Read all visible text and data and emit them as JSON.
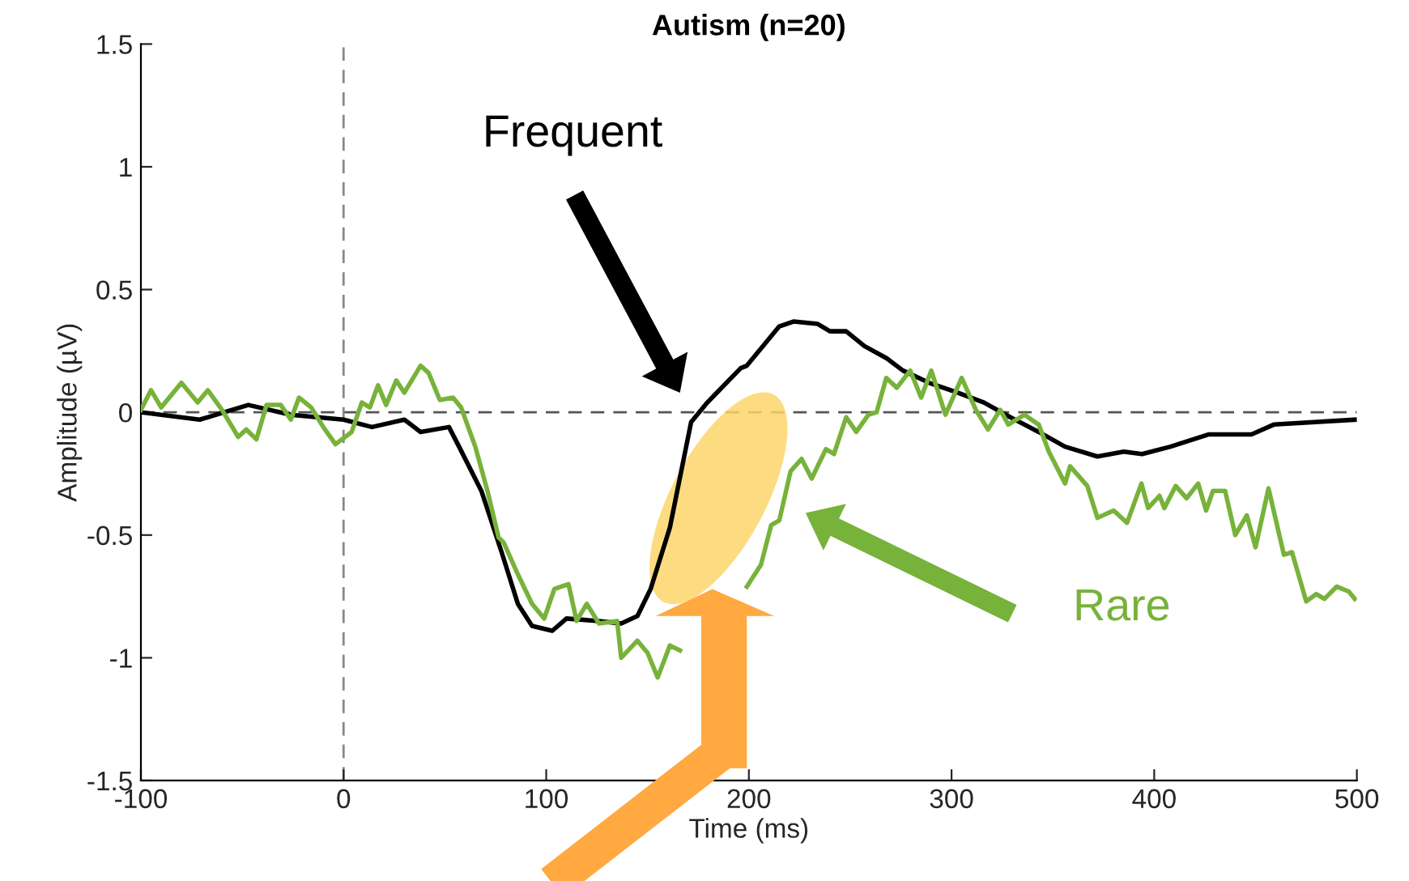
{
  "chart_data": {
    "type": "line",
    "title": "Autism (n=20)",
    "xlabel": "Time (ms)",
    "ylabel": "Amplitude (µV)",
    "xlim": [
      -100,
      500
    ],
    "xticks": [
      -100,
      0,
      100,
      200,
      300,
      400,
      500
    ],
    "ylim": [
      -1.5,
      1.5
    ],
    "yticks": [
      -1.5,
      -1,
      -0.5,
      0,
      0.5,
      1,
      1.5
    ],
    "grid": false,
    "legend": false,
    "marker": "none",
    "line_style": "solid",
    "ref_lines": [
      {
        "axis": "y",
        "value": 0,
        "color": "#555555",
        "line_style": "dashed"
      },
      {
        "axis": "x",
        "value": 0,
        "color": "#888888",
        "line_style": "dashed"
      }
    ],
    "annotations": [
      "Frequent",
      "Rare"
    ],
    "series": [
      {
        "color": "#000000",
        "x": [
          -100,
          -71,
          -47,
          -26,
          0,
          14,
          30,
          38,
          52,
          57,
          68,
          78,
          86,
          93,
          103,
          110,
          126,
          137,
          145,
          151.5,
          161,
          171.5,
          179.5,
          183,
          196,
          199,
          215,
          222,
          234,
          240,
          248,
          257,
          268,
          276,
          289,
          303,
          316,
          329,
          343,
          356,
          372,
          385,
          394,
          408,
          427,
          448,
          459,
          499
        ],
        "values": [
          0,
          -0.03,
          0.03,
          -0.01,
          -0.03,
          -0.06,
          -0.03,
          -0.08,
          -0.06,
          -0.14,
          -0.32,
          -0.57,
          -0.78,
          -0.87,
          -0.89,
          -0.84,
          -0.85,
          -0.86,
          -0.83,
          -0.72,
          -0.47,
          -0.04,
          0.04,
          0.07,
          0.18,
          0.19,
          0.35,
          0.37,
          0.36,
          0.33,
          0.33,
          0.27,
          0.22,
          0.17,
          0.12,
          0.08,
          0.04,
          -0.02,
          -0.08,
          -0.14,
          -0.18,
          -0.16,
          -0.17,
          -0.14,
          -0.09,
          -0.09,
          -0.05,
          -0.03
        ]
      },
      {
        "color": "#77b23a",
        "x": [
          -100,
          -95,
          -90,
          -80,
          -72,
          -67,
          -60,
          -52,
          -48,
          -43,
          -38,
          -31,
          -26,
          -22,
          -16,
          -10,
          -4,
          4,
          9,
          13,
          17,
          21,
          26,
          30,
          38,
          42,
          47.5,
          54,
          58,
          65,
          71,
          76.5,
          79,
          86,
          93,
          99,
          104,
          111,
          115,
          120,
          126,
          135,
          137,
          145,
          150,
          155,
          161,
          166,
          172.5,
          199,
          206,
          211,
          215,
          220.6,
          226,
          231,
          238,
          242,
          248,
          253,
          259,
          263,
          267.8,
          273,
          279.6,
          285,
          290,
          297,
          305,
          312,
          318,
          324,
          328,
          336,
          343,
          348,
          356,
          358.5,
          367,
          372,
          380,
          386.6,
          393.7,
          397,
          402.6,
          405,
          410.6,
          416,
          421.7,
          425.6,
          429,
          435,
          440,
          445.7,
          450,
          456.4,
          464,
          468,
          475,
          480,
          484,
          490,
          496,
          499
        ],
        "values": [
          0.01,
          0.09,
          0.02,
          0.12,
          0.04,
          0.09,
          0.01,
          -0.1,
          -0.07,
          -0.11,
          0.03,
          0.03,
          -0.03,
          0.06,
          0.02,
          -0.06,
          -0.13,
          -0.08,
          0.04,
          0.02,
          0.11,
          0.03,
          0.13,
          0.08,
          0.19,
          0.16,
          0.05,
          0.06,
          0.02,
          -0.14,
          -0.32,
          -0.51,
          -0.53,
          -0.66,
          -0.78,
          -0.84,
          -0.72,
          -0.7,
          -0.85,
          -0.78,
          -0.86,
          -0.85,
          -1.0,
          -0.93,
          -0.98,
          -1.08,
          -0.95,
          -0.97,
          null,
          -0.71,
          -0.62,
          -0.46,
          -0.44,
          -0.24,
          -0.19,
          -0.27,
          -0.15,
          -0.17,
          -0.02,
          -0.08,
          -0.01,
          0.0,
          0.14,
          0.1,
          0.17,
          0.06,
          0.17,
          -0.01,
          0.14,
          0.01,
          -0.07,
          0.01,
          -0.05,
          -0.01,
          -0.05,
          -0.16,
          -0.29,
          -0.22,
          -0.3,
          -0.43,
          -0.4,
          -0.45,
          -0.29,
          -0.39,
          -0.34,
          -0.39,
          -0.3,
          -0.35,
          -0.29,
          -0.4,
          -0.32,
          -0.32,
          -0.5,
          -0.42,
          -0.55,
          -0.31,
          -0.58,
          -0.57,
          -0.77,
          -0.74,
          -0.76,
          -0.71,
          -0.73,
          -0.76
        ]
      }
    ]
  }
}
